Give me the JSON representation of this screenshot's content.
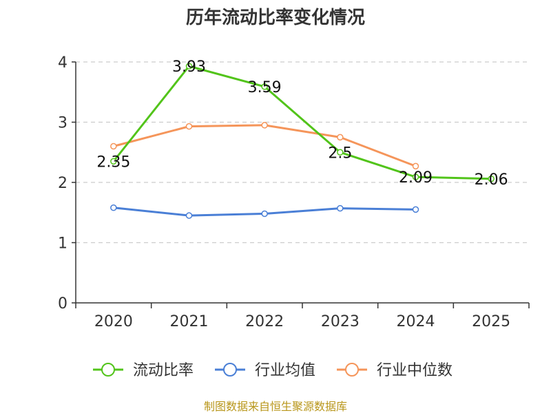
{
  "chart_data": {
    "type": "line",
    "title": "历年流动比率变化情况",
    "categories": [
      "2020",
      "2021",
      "2022",
      "2023",
      "2024",
      "2025"
    ],
    "ylim": [
      0,
      4
    ],
    "yticks": [
      0,
      1,
      2,
      3,
      4
    ],
    "grid": true,
    "legend_position": "bottom",
    "series": [
      {
        "name": "流动比率",
        "color": "#52c41a",
        "values": [
          2.35,
          3.93,
          3.59,
          2.5,
          2.09,
          2.06
        ],
        "labels": [
          "2.35",
          "3.93",
          "3.59",
          "2.5",
          "2.09",
          "2.06"
        ]
      },
      {
        "name": "行业均值",
        "color": "#4a7fd6",
        "values": [
          1.58,
          1.45,
          1.48,
          1.57,
          1.55,
          null
        ]
      },
      {
        "name": "行业中位数",
        "color": "#f5955a",
        "values": [
          2.6,
          2.93,
          2.95,
          2.75,
          2.27,
          null
        ]
      }
    ],
    "source": "制图数据来自恒生聚源数据库"
  }
}
